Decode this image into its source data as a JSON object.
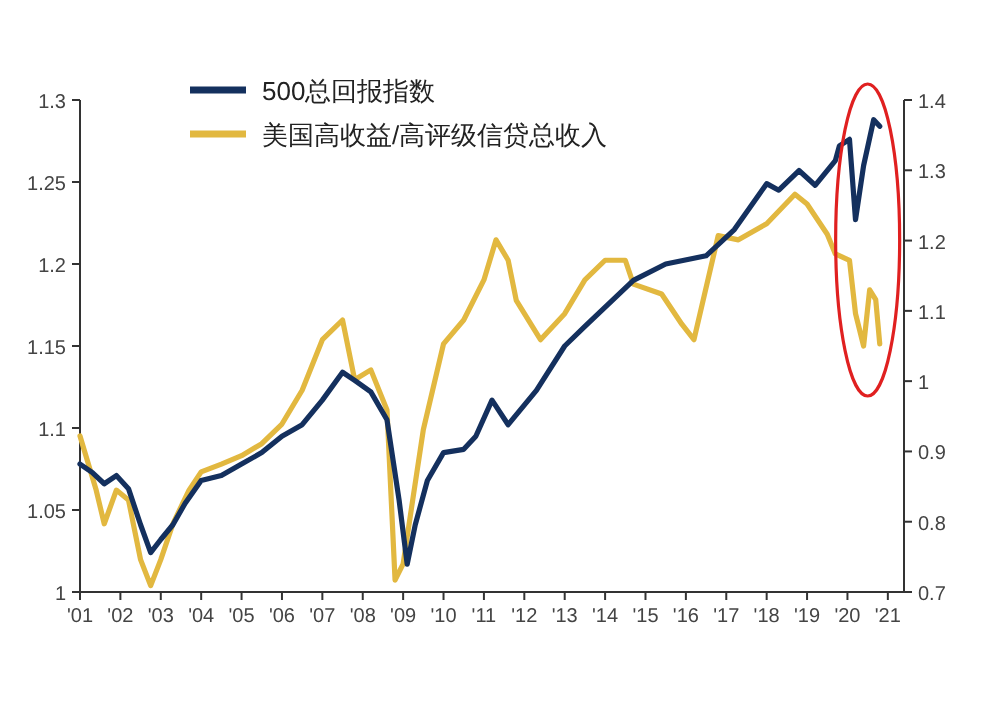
{
  "chart_data": {
    "type": "line",
    "xlim": [
      2001,
      2021.4
    ],
    "xticks": [
      {
        "value": 2001,
        "label": "'01"
      },
      {
        "value": 2002,
        "label": "'02"
      },
      {
        "value": 2003,
        "label": "'03"
      },
      {
        "value": 2004,
        "label": "'04"
      },
      {
        "value": 2005,
        "label": "'05"
      },
      {
        "value": 2006,
        "label": "'06"
      },
      {
        "value": 2007,
        "label": "'07"
      },
      {
        "value": 2008,
        "label": "'08"
      },
      {
        "value": 2009,
        "label": "'09"
      },
      {
        "value": 2010,
        "label": "'10"
      },
      {
        "value": 2011,
        "label": "'11"
      },
      {
        "value": 2012,
        "label": "'12"
      },
      {
        "value": 2013,
        "label": "'13"
      },
      {
        "value": 2014,
        "label": "'14"
      },
      {
        "value": 2015,
        "label": "'15"
      },
      {
        "value": 2016,
        "label": "'16"
      },
      {
        "value": 2017,
        "label": "'17"
      },
      {
        "value": 2018,
        "label": "'18"
      },
      {
        "value": 2019,
        "label": "'19"
      },
      {
        "value": 2020,
        "label": "'20"
      },
      {
        "value": 2021,
        "label": "'21"
      }
    ],
    "ylim": [
      1,
      1.3
    ],
    "yticks": [
      1,
      1.05,
      1.1,
      1.15,
      1.2,
      1.25,
      1.3
    ],
    "y2lim": [
      0.7,
      1.4
    ],
    "y2ticks": [
      0.7,
      0.8,
      0.9,
      1,
      1.1,
      1.2,
      1.3,
      1.4
    ],
    "grid": false,
    "legend": "top",
    "marker": "none",
    "line_style": "solid",
    "series": [
      {
        "name": "500总回报指数",
        "color": "#14305e",
        "x": [
          2001.0,
          2001.3,
          2001.6,
          2001.9,
          2002.2,
          2002.5,
          2002.75,
          2003.0,
          2003.3,
          2003.6,
          2004.0,
          2004.5,
          2005.0,
          2005.5,
          2006.0,
          2006.5,
          2007.0,
          2007.5,
          2007.8,
          2008.2,
          2008.6,
          2008.9,
          2009.1,
          2009.3,
          2009.6,
          2010.0,
          2010.5,
          2010.8,
          2011.2,
          2011.6,
          2012.3,
          2013.0,
          2013.5,
          2014.7,
          2015.5,
          2016.5,
          2017.2,
          2018.0,
          2018.3,
          2018.8,
          2019.2,
          2019.7,
          2019.8,
          2020.05,
          2020.2,
          2020.4,
          2020.65,
          2020.8
        ],
        "values": [
          1.078,
          1.073,
          1.066,
          1.071,
          1.063,
          1.041,
          1.024,
          1.032,
          1.041,
          1.054,
          1.068,
          1.071,
          1.078,
          1.085,
          1.095,
          1.102,
          1.117,
          1.134,
          1.129,
          1.122,
          1.105,
          1.056,
          1.017,
          1.041,
          1.068,
          1.085,
          1.087,
          1.095,
          1.117,
          1.102,
          1.123,
          1.15,
          1.162,
          1.19,
          1.2,
          1.205,
          1.221,
          1.249,
          1.245,
          1.257,
          1.248,
          1.263,
          1.272,
          1.276,
          1.227,
          1.26,
          1.288,
          1.284
        ]
      },
      {
        "name": "美国高收益/高评级信贷总收入",
        "color": "#e2b840",
        "axis": "y2",
        "x": [
          2001.0,
          2001.4,
          2001.6,
          2001.9,
          2002.2,
          2002.5,
          2002.75,
          2003.0,
          2003.3,
          2003.7,
          2004.0,
          2004.5,
          2005.0,
          2005.5,
          2006.0,
          2006.5,
          2007.0,
          2007.5,
          2007.8,
          2008.2,
          2008.6,
          2008.8,
          2009.0,
          2009.2,
          2009.5,
          2010.0,
          2010.5,
          2011.0,
          2011.3,
          2011.6,
          2011.8,
          2012.4,
          2013.0,
          2013.5,
          2014.0,
          2014.5,
          2014.7,
          2015.4,
          2015.9,
          2016.2,
          2016.8,
          2017.3,
          2018.0,
          2018.7,
          2019.0,
          2019.5,
          2019.7,
          2020.05,
          2020.2,
          2020.4,
          2020.55,
          2020.7,
          2020.8
        ],
        "values": [
          0.922,
          0.845,
          0.797,
          0.845,
          0.831,
          0.746,
          0.709,
          0.746,
          0.797,
          0.845,
          0.871,
          0.882,
          0.894,
          0.911,
          0.939,
          0.987,
          1.059,
          1.087,
          1.002,
          1.016,
          0.959,
          0.717,
          0.74,
          0.817,
          0.931,
          1.053,
          1.087,
          1.144,
          1.201,
          1.172,
          1.115,
          1.059,
          1.096,
          1.144,
          1.172,
          1.172,
          1.138,
          1.124,
          1.081,
          1.059,
          1.207,
          1.201,
          1.224,
          1.266,
          1.252,
          1.209,
          1.181,
          1.172,
          1.096,
          1.05,
          1.13,
          1.116,
          1.053
        ]
      }
    ]
  }
}
